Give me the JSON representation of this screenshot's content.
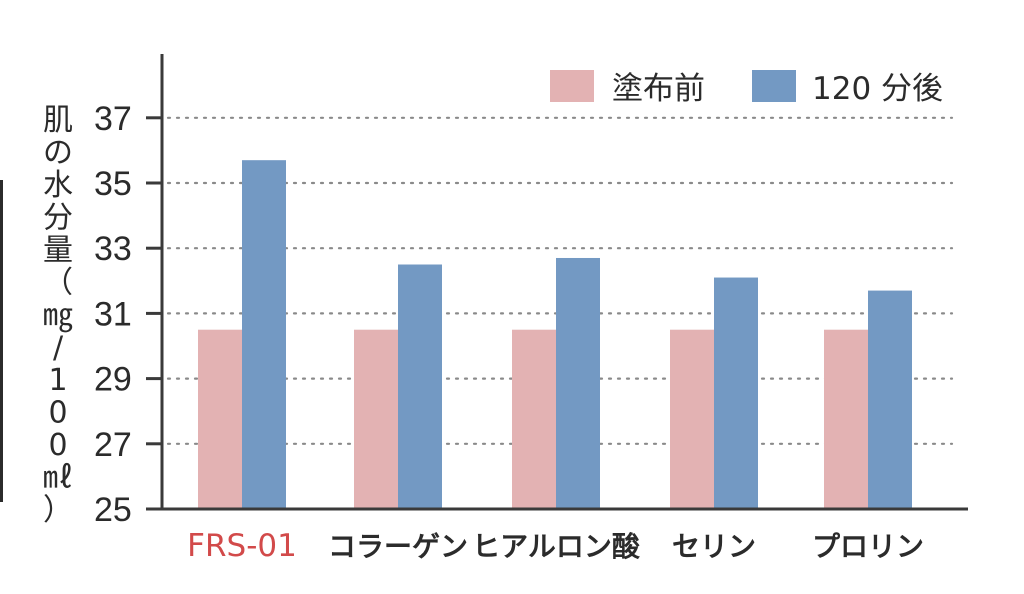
{
  "chart_data": {
    "type": "bar",
    "categories": [
      "FRS-01",
      "コラーゲン",
      "ヒアルロン酸",
      "セリン",
      "プロリン"
    ],
    "series": [
      {
        "name": "塗布前",
        "values": [
          30.5,
          30.5,
          30.5,
          30.5,
          30.5
        ]
      },
      {
        "name": "120 分後",
        "values": [
          35.7,
          32.5,
          32.7,
          32.1,
          31.7
        ]
      }
    ],
    "title": "",
    "xlabel": "",
    "ylabel": "肌の水分量（㎎/100㎖）",
    "ylim": [
      25,
      37
    ],
    "yticks": [
      25,
      27,
      29,
      31,
      33,
      35,
      37
    ],
    "grid": true,
    "legend_position": "top-right"
  },
  "colors": {
    "before": "#e3b2b3",
    "after": "#7399c3",
    "axis": "#3a3a3a",
    "grid": "#8a8a8a",
    "highlight_label": "#d24a4a",
    "text": "#2b2b2b"
  }
}
